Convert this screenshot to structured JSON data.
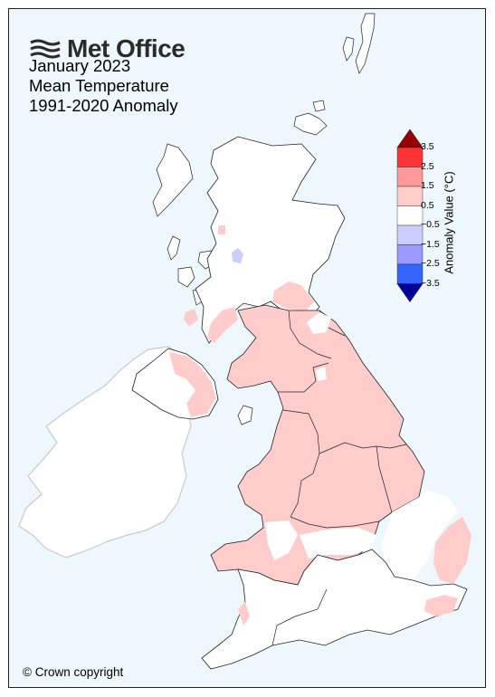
{
  "brand": {
    "name": "Met Office"
  },
  "title": {
    "line1": "January 2023",
    "line2": "Mean Temperature",
    "line3": "1991-2020 Anomaly"
  },
  "copyright": "© Crown copyright",
  "legend": {
    "title": "Anomaly Value (°C)",
    "ticks": [
      "3.5",
      "2.5",
      "1.5",
      "0.5",
      "−0.5",
      "−1.5",
      "−2.5",
      "−3.5"
    ],
    "bins": [
      {
        "range": "> 3.5",
        "color": "#990000"
      },
      {
        "range": "2.5 to 3.5",
        "color": "#ff3333"
      },
      {
        "range": "1.5 to 2.5",
        "color": "#ff9999"
      },
      {
        "range": "0.5 to 1.5",
        "color": "#ffcccc"
      },
      {
        "range": "-0.5 to 0.5",
        "color": "#ffffff"
      },
      {
        "range": "-1.5 to -0.5",
        "color": "#ccccff"
      },
      {
        "range": "-2.5 to -1.5",
        "color": "#9999ff"
      },
      {
        "range": "-3.5 to -2.5",
        "color": "#3366ff"
      },
      {
        "range": "< -3.5",
        "color": "#000099"
      }
    ]
  },
  "map": {
    "sea_color": "#eef7fb",
    "land_color": "#ffffff",
    "regions": [
      "Scotland",
      "Northern Ireland",
      "Northern England",
      "Wales",
      "Midlands",
      "East Anglia",
      "Southern England",
      "Ireland"
    ]
  }
}
